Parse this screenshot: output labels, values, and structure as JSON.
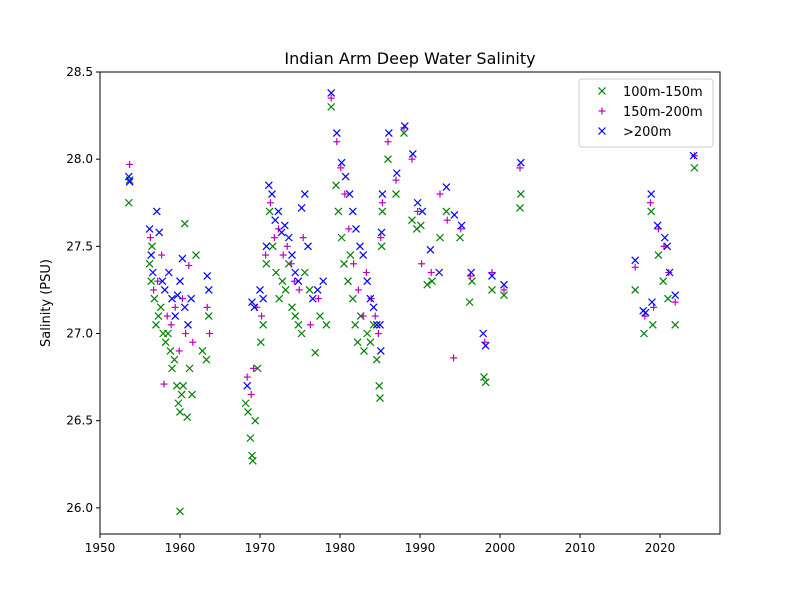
{
  "chart_data": {
    "type": "scatter",
    "title": "Indian Arm Deep Water Salinity",
    "xlabel": "",
    "ylabel": "Salinity (PSU)",
    "xlim": [
      1950,
      2027.5
    ],
    "ylim": [
      25.85,
      28.5
    ],
    "xticks": [
      1950,
      1960,
      1970,
      1980,
      1990,
      2000,
      2010,
      2020
    ],
    "yticks": [
      26.0,
      26.5,
      27.0,
      27.5,
      28.0,
      28.5
    ],
    "ytick_labels": [
      "26.0",
      "26.5",
      "27.0",
      "27.5",
      "28.0",
      "28.5"
    ],
    "legend_position": "upper right",
    "grid": false,
    "series": [
      {
        "name": "100m-150m",
        "marker": "x",
        "color": "#008000",
        "points": [
          [
            1953.6,
            27.75
          ],
          [
            1953.7,
            27.88
          ],
          [
            1956.2,
            27.4
          ],
          [
            1956.4,
            27.3
          ],
          [
            1956.5,
            27.5
          ],
          [
            1956.8,
            27.2
          ],
          [
            1957.0,
            27.05
          ],
          [
            1957.3,
            27.1
          ],
          [
            1957.6,
            27.15
          ],
          [
            1957.9,
            27.0
          ],
          [
            1958.2,
            26.95
          ],
          [
            1958.5,
            27.0
          ],
          [
            1958.8,
            26.9
          ],
          [
            1959.0,
            26.8
          ],
          [
            1959.3,
            26.85
          ],
          [
            1959.6,
            26.7
          ],
          [
            1959.8,
            26.6
          ],
          [
            1960.0,
            26.55
          ],
          [
            1960.0,
            25.98
          ],
          [
            1960.2,
            26.65
          ],
          [
            1960.4,
            26.7
          ],
          [
            1960.6,
            27.63
          ],
          [
            1960.9,
            26.52
          ],
          [
            1961.2,
            26.8
          ],
          [
            1961.5,
            26.65
          ],
          [
            1962.0,
            27.45
          ],
          [
            1962.8,
            26.9
          ],
          [
            1963.3,
            26.85
          ],
          [
            1963.6,
            27.1
          ],
          [
            1968.2,
            26.6
          ],
          [
            1968.5,
            26.55
          ],
          [
            1968.8,
            26.4
          ],
          [
            1969.0,
            26.3
          ],
          [
            1969.1,
            26.27
          ],
          [
            1969.4,
            26.5
          ],
          [
            1969.7,
            26.8
          ],
          [
            1970.1,
            26.95
          ],
          [
            1970.4,
            27.05
          ],
          [
            1970.8,
            27.4
          ],
          [
            1971.2,
            27.7
          ],
          [
            1971.6,
            27.5
          ],
          [
            1972.0,
            27.35
          ],
          [
            1972.4,
            27.2
          ],
          [
            1972.8,
            27.3
          ],
          [
            1973.2,
            27.25
          ],
          [
            1973.6,
            27.4
          ],
          [
            1974.0,
            27.15
          ],
          [
            1974.4,
            27.1
          ],
          [
            1974.8,
            27.05
          ],
          [
            1975.2,
            27.0
          ],
          [
            1975.6,
            27.35
          ],
          [
            1976.2,
            27.25
          ],
          [
            1976.9,
            26.89
          ],
          [
            1977.5,
            27.1
          ],
          [
            1978.3,
            27.05
          ],
          [
            1978.9,
            28.3
          ],
          [
            1979.5,
            27.85
          ],
          [
            1979.8,
            27.7
          ],
          [
            1980.2,
            27.55
          ],
          [
            1980.5,
            27.4
          ],
          [
            1981.0,
            27.3
          ],
          [
            1981.3,
            27.45
          ],
          [
            1981.6,
            27.2
          ],
          [
            1981.9,
            27.05
          ],
          [
            1982.2,
            26.95
          ],
          [
            1982.6,
            27.1
          ],
          [
            1983.0,
            26.9
          ],
          [
            1983.4,
            27.0
          ],
          [
            1983.8,
            26.95
          ],
          [
            1984.2,
            27.05
          ],
          [
            1984.6,
            26.85
          ],
          [
            1984.9,
            26.7
          ],
          [
            1985.0,
            26.63
          ],
          [
            1985.2,
            27.5
          ],
          [
            1985.3,
            27.7
          ],
          [
            1986.0,
            28.0
          ],
          [
            1987.0,
            27.8
          ],
          [
            1988.0,
            28.15
          ],
          [
            1989.0,
            27.65
          ],
          [
            1989.6,
            27.6
          ],
          [
            1990.1,
            27.62
          ],
          [
            1990.9,
            27.28
          ],
          [
            1991.5,
            27.3
          ],
          [
            1992.5,
            27.55
          ],
          [
            1993.3,
            27.7
          ],
          [
            1995.0,
            27.55
          ],
          [
            1996.2,
            27.18
          ],
          [
            1996.5,
            27.3
          ],
          [
            1998.0,
            26.75
          ],
          [
            1998.2,
            26.72
          ],
          [
            1999.0,
            27.25
          ],
          [
            2000.5,
            27.22
          ],
          [
            2002.5,
            27.72
          ],
          [
            2002.6,
            27.8
          ],
          [
            2016.9,
            27.25
          ],
          [
            2018.0,
            27.0
          ],
          [
            2018.9,
            27.7
          ],
          [
            2019.1,
            27.05
          ],
          [
            2019.8,
            27.45
          ],
          [
            2020.4,
            27.3
          ],
          [
            2021.0,
            27.2
          ],
          [
            2021.9,
            27.05
          ],
          [
            2024.3,
            27.95
          ]
        ]
      },
      {
        "name": "150m-200m",
        "marker": "+",
        "color": "#bf00bf",
        "points": [
          [
            1953.7,
            27.97
          ],
          [
            1956.3,
            27.55
          ],
          [
            1956.7,
            27.25
          ],
          [
            1957.2,
            27.3
          ],
          [
            1957.7,
            27.45
          ],
          [
            1958.0,
            26.71
          ],
          [
            1958.4,
            27.1
          ],
          [
            1958.9,
            27.05
          ],
          [
            1959.4,
            27.15
          ],
          [
            1959.9,
            26.9
          ],
          [
            1960.3,
            27.2
          ],
          [
            1960.7,
            27.0
          ],
          [
            1961.1,
            27.39
          ],
          [
            1961.6,
            26.95
          ],
          [
            1963.4,
            27.15
          ],
          [
            1963.7,
            27.0
          ],
          [
            1968.4,
            26.75
          ],
          [
            1968.9,
            26.65
          ],
          [
            1969.2,
            26.8
          ],
          [
            1969.6,
            27.15
          ],
          [
            1970.2,
            27.1
          ],
          [
            1970.7,
            27.45
          ],
          [
            1971.3,
            27.75
          ],
          [
            1971.8,
            27.55
          ],
          [
            1972.3,
            27.6
          ],
          [
            1972.9,
            27.45
          ],
          [
            1973.4,
            27.5
          ],
          [
            1973.9,
            27.4
          ],
          [
            1974.3,
            27.3
          ],
          [
            1974.9,
            27.25
          ],
          [
            1975.4,
            27.55
          ],
          [
            1976.3,
            27.05
          ],
          [
            1977.3,
            27.2
          ],
          [
            1978.9,
            28.35
          ],
          [
            1979.6,
            28.1
          ],
          [
            1980.1,
            27.95
          ],
          [
            1980.6,
            27.8
          ],
          [
            1981.1,
            27.6
          ],
          [
            1981.7,
            27.4
          ],
          [
            1982.3,
            27.25
          ],
          [
            1982.9,
            27.1
          ],
          [
            1983.3,
            27.35
          ],
          [
            1983.9,
            27.2
          ],
          [
            1984.4,
            27.1
          ],
          [
            1984.8,
            27.0
          ],
          [
            1985.1,
            27.55
          ],
          [
            1985.3,
            27.75
          ],
          [
            1986.0,
            28.1
          ],
          [
            1987.0,
            27.88
          ],
          [
            1988.0,
            28.18
          ],
          [
            1989.0,
            28.0
          ],
          [
            1989.7,
            27.7
          ],
          [
            1990.2,
            27.4
          ],
          [
            1991.4,
            27.35
          ],
          [
            1992.5,
            27.8
          ],
          [
            1993.4,
            27.65
          ],
          [
            1994.2,
            26.86
          ],
          [
            1995.1,
            27.6
          ],
          [
            1996.3,
            27.33
          ],
          [
            1998.1,
            26.95
          ],
          [
            1999.0,
            27.35
          ],
          [
            2000.5,
            27.25
          ],
          [
            2002.5,
            27.95
          ],
          [
            2016.9,
            27.38
          ],
          [
            2018.1,
            27.1
          ],
          [
            2018.8,
            27.75
          ],
          [
            2019.2,
            27.15
          ],
          [
            2019.8,
            27.6
          ],
          [
            2020.5,
            27.5
          ],
          [
            2021.1,
            27.35
          ],
          [
            2021.9,
            27.18
          ],
          [
            2024.3,
            28.02
          ]
        ]
      },
      {
        "name": ">200m",
        "marker": "x",
        "color": "#0000ff",
        "points": [
          [
            1953.6,
            27.9
          ],
          [
            1953.7,
            27.87
          ],
          [
            1956.2,
            27.6
          ],
          [
            1956.4,
            27.45
          ],
          [
            1956.6,
            27.35
          ],
          [
            1957.1,
            27.7
          ],
          [
            1957.4,
            27.58
          ],
          [
            1957.8,
            27.3
          ],
          [
            1958.1,
            27.25
          ],
          [
            1958.6,
            27.35
          ],
          [
            1959.0,
            27.2
          ],
          [
            1959.4,
            27.1
          ],
          [
            1959.7,
            27.22
          ],
          [
            1960.0,
            27.3
          ],
          [
            1960.3,
            27.43
          ],
          [
            1960.6,
            27.15
          ],
          [
            1961.0,
            27.05
          ],
          [
            1961.4,
            27.2
          ],
          [
            1963.4,
            27.33
          ],
          [
            1963.6,
            27.25
          ],
          [
            1968.4,
            26.7
          ],
          [
            1969.0,
            27.18
          ],
          [
            1969.3,
            27.15
          ],
          [
            1970.0,
            27.25
          ],
          [
            1970.4,
            27.2
          ],
          [
            1970.8,
            27.5
          ],
          [
            1971.1,
            27.85
          ],
          [
            1971.5,
            27.8
          ],
          [
            1971.9,
            27.65
          ],
          [
            1972.3,
            27.7
          ],
          [
            1972.7,
            27.58
          ],
          [
            1973.1,
            27.62
          ],
          [
            1973.6,
            27.55
          ],
          [
            1974.0,
            27.45
          ],
          [
            1974.4,
            27.35
          ],
          [
            1974.8,
            27.3
          ],
          [
            1975.2,
            27.72
          ],
          [
            1975.6,
            27.8
          ],
          [
            1976.0,
            27.5
          ],
          [
            1976.6,
            27.2
          ],
          [
            1977.2,
            27.25
          ],
          [
            1977.9,
            27.3
          ],
          [
            1978.9,
            28.38
          ],
          [
            1979.6,
            28.15
          ],
          [
            1980.2,
            27.98
          ],
          [
            1980.7,
            27.9
          ],
          [
            1981.2,
            27.8
          ],
          [
            1981.6,
            27.7
          ],
          [
            1982.0,
            27.6
          ],
          [
            1982.5,
            27.5
          ],
          [
            1982.9,
            27.45
          ],
          [
            1983.4,
            27.3
          ],
          [
            1983.8,
            27.2
          ],
          [
            1984.2,
            27.15
          ],
          [
            1984.6,
            27.05
          ],
          [
            1985.0,
            27.05
          ],
          [
            1985.1,
            26.9
          ],
          [
            1985.2,
            27.58
          ],
          [
            1985.3,
            27.8
          ],
          [
            1986.1,
            28.15
          ],
          [
            1987.1,
            27.92
          ],
          [
            1988.1,
            28.19
          ],
          [
            1989.1,
            28.03
          ],
          [
            1989.7,
            27.75
          ],
          [
            1990.3,
            27.7
          ],
          [
            1991.3,
            27.48
          ],
          [
            1992.4,
            27.35
          ],
          [
            1993.3,
            27.84
          ],
          [
            1994.3,
            27.68
          ],
          [
            1995.2,
            27.62
          ],
          [
            1996.4,
            27.35
          ],
          [
            1997.9,
            27.0
          ],
          [
            1998.2,
            26.93
          ],
          [
            1999.0,
            27.33
          ],
          [
            2000.5,
            27.28
          ],
          [
            2002.6,
            27.98
          ],
          [
            2016.9,
            27.42
          ],
          [
            2017.9,
            27.13
          ],
          [
            2018.2,
            27.12
          ],
          [
            2018.9,
            27.8
          ],
          [
            2019.0,
            27.18
          ],
          [
            2019.7,
            27.62
          ],
          [
            2020.6,
            27.55
          ],
          [
            2020.9,
            27.5
          ],
          [
            2021.2,
            27.35
          ],
          [
            2021.9,
            27.22
          ],
          [
            2024.2,
            28.02
          ]
        ]
      }
    ]
  }
}
